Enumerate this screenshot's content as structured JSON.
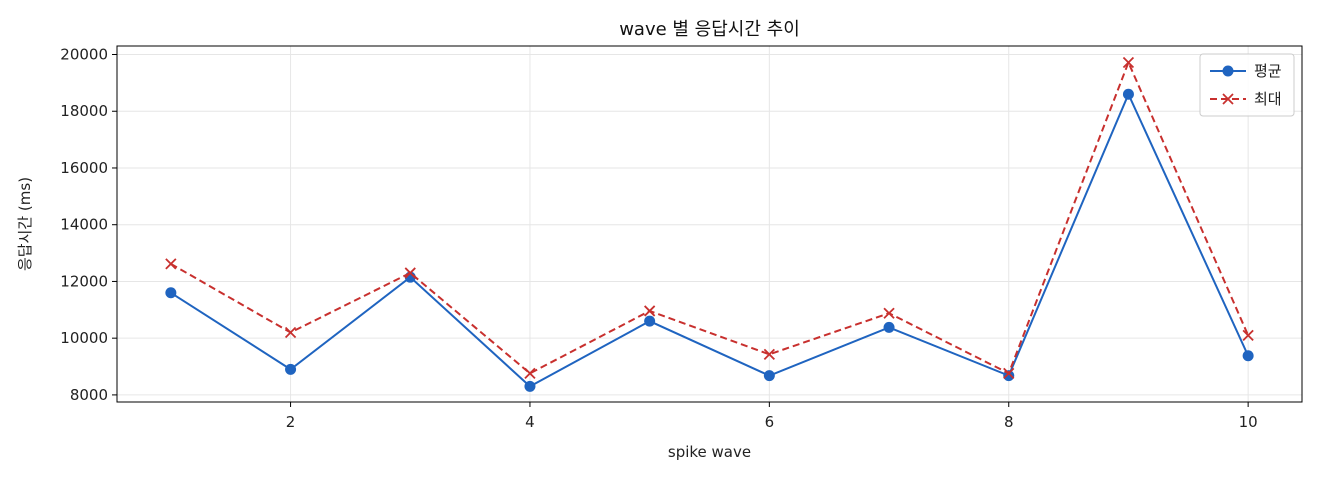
{
  "chart_data": {
    "type": "line",
    "title": "wave 별 응답시간 추이",
    "xlabel": "spike wave",
    "ylabel": "응답시간 (ms)",
    "x": [
      1,
      2,
      3,
      4,
      5,
      6,
      7,
      8,
      9,
      10
    ],
    "xlim": [
      0.55,
      10.45
    ],
    "ylim": [
      7750,
      20300
    ],
    "xticks": [
      2,
      4,
      6,
      8,
      10
    ],
    "yticks": [
      8000,
      10000,
      12000,
      14000,
      16000,
      18000,
      20000
    ],
    "grid": true,
    "legend_position": "top-right",
    "series": [
      {
        "name": "평균",
        "values": [
          11600,
          8900,
          12150,
          8300,
          10600,
          8680,
          10380,
          8680,
          18600,
          9380
        ],
        "color": "#1f64c0",
        "marker": "circle",
        "linestyle": "solid"
      },
      {
        "name": "최대",
        "values": [
          12620,
          10200,
          12300,
          8760,
          10960,
          9430,
          10880,
          8760,
          19720,
          10100
        ],
        "color": "#c8302e",
        "marker": "x",
        "linestyle": "dashed"
      }
    ]
  }
}
